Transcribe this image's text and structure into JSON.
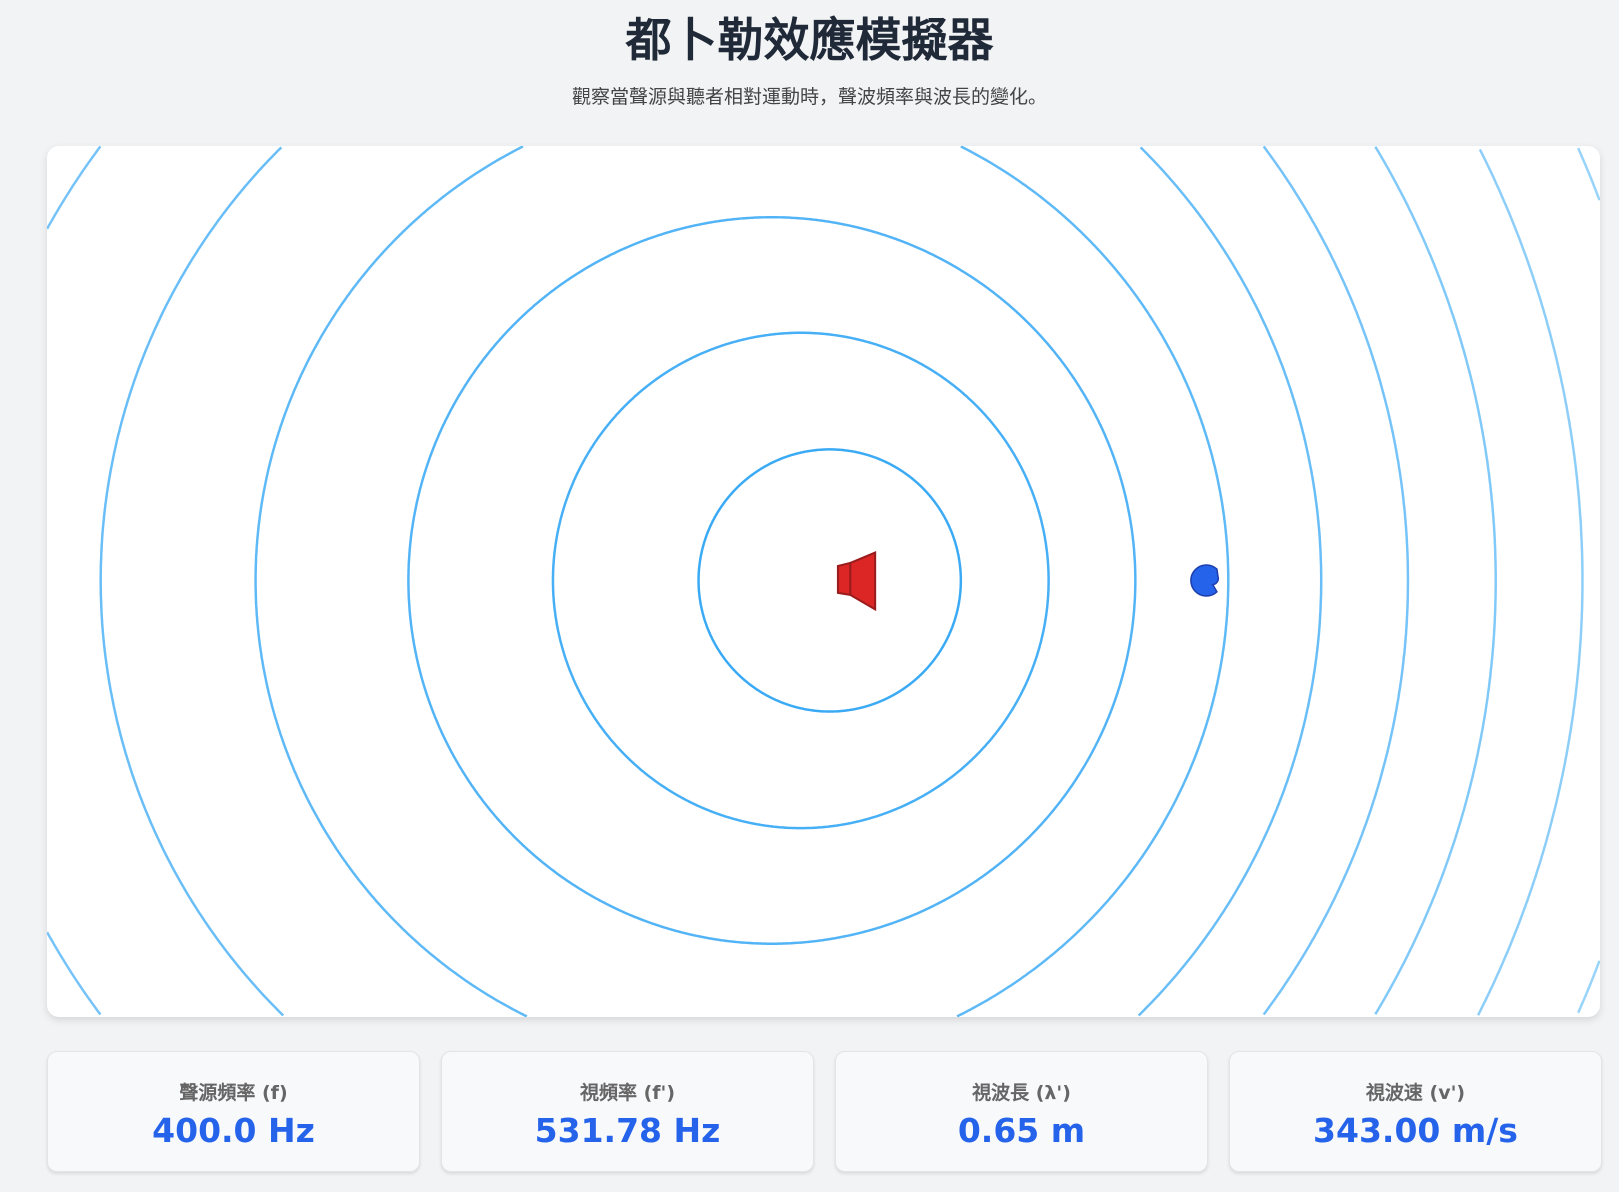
{
  "title": "都卜勒效應模擬器",
  "subtitle": "觀察當聲源與聽者相對運動時，聲波頻率與波長的變化。",
  "colors": {
    "wave": "#3aaaf5",
    "source": "#dc2626",
    "listener": "#2563eb",
    "value": "#2563eb"
  },
  "icons": {
    "source": "speaker-icon",
    "listener": "listener-ear-icon"
  },
  "stats": [
    {
      "label": "聲源頻率 (f)",
      "value": "400.0 Hz"
    },
    {
      "label": "視頻率 (f')",
      "value": "531.78 Hz"
    },
    {
      "label": "視波長 (λ')",
      "value": "0.65 m"
    },
    {
      "label": "視波速 (v')",
      "value": "343.00 m/s"
    }
  ]
}
